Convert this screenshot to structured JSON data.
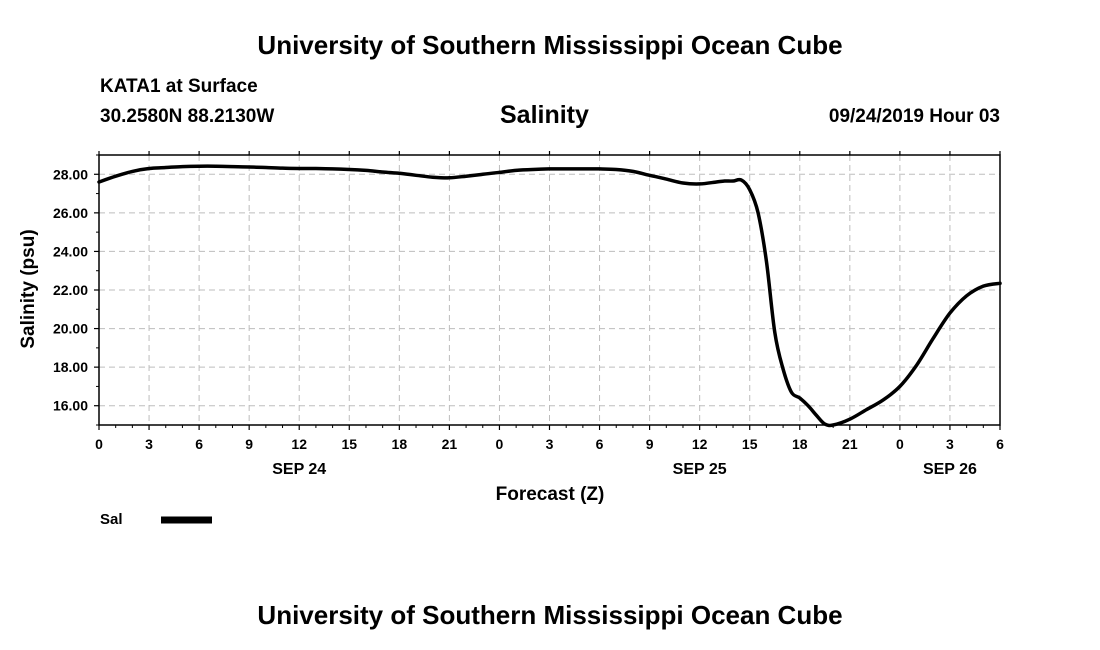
{
  "header": {
    "title": "University of Southern Mississippi Ocean Cube",
    "station": "KATA1 at Surface",
    "coords": "30.2580N 88.2130W",
    "chart_title": "Salinity",
    "timestamp": "09/24/2019 Hour 03"
  },
  "footer": {
    "title": "University of Southern Mississippi Ocean Cube"
  },
  "chart_data": {
    "type": "line",
    "title": "Salinity",
    "xlabel": "Forecast (Z)",
    "ylabel": "Salinity (psu)",
    "x_unit": "hours from 2019-09-24 00Z",
    "xlim": [
      0,
      54
    ],
    "ylim": [
      15,
      29
    ],
    "grid": true,
    "x_tick_values": [
      0,
      3,
      6,
      9,
      12,
      15,
      18,
      21,
      24,
      27,
      30,
      33,
      36,
      39,
      42,
      45,
      48,
      51,
      54
    ],
    "x_tick_labels": [
      "0",
      "3",
      "6",
      "9",
      "12",
      "15",
      "18",
      "21",
      "0",
      "3",
      "6",
      "9",
      "12",
      "15",
      "18",
      "21",
      "0",
      "3",
      "6"
    ],
    "date_labels": [
      {
        "x": 12,
        "label": "SEP 24"
      },
      {
        "x": 36,
        "label": "SEP 25"
      },
      {
        "x": 51,
        "label": "SEP 26"
      }
    ],
    "y_ticks": [
      16,
      18,
      20,
      22,
      24,
      26,
      28
    ],
    "y_tick_labels": [
      "16.00",
      "18.00",
      "20.00",
      "22.00",
      "24.00",
      "26.00",
      "28.00"
    ],
    "legend": {
      "position": "bottom-left",
      "entries": [
        "Sal"
      ]
    },
    "series": [
      {
        "name": "Sal",
        "color": "#000000",
        "x": [
          0,
          1,
          2,
          3,
          4,
          5,
          6,
          7,
          8,
          9,
          10,
          11,
          12,
          13,
          14,
          15,
          16,
          17,
          18,
          19,
          20,
          21,
          22,
          23,
          24,
          25,
          26,
          27,
          28,
          29,
          30,
          31,
          32,
          33,
          34,
          35,
          36,
          37,
          37.5,
          38,
          38.5,
          39,
          39.5,
          40,
          40.5,
          41,
          41.5,
          42,
          42.5,
          43,
          43.5,
          44,
          45,
          46,
          47,
          48,
          49,
          50,
          51,
          52,
          53,
          54
        ],
        "y": [
          27.6,
          27.9,
          28.15,
          28.3,
          28.35,
          28.4,
          28.42,
          28.42,
          28.4,
          28.38,
          28.35,
          28.32,
          28.3,
          28.3,
          28.28,
          28.25,
          28.2,
          28.12,
          28.05,
          27.95,
          27.85,
          27.82,
          27.9,
          28.0,
          28.1,
          28.2,
          28.25,
          28.28,
          28.28,
          28.28,
          28.28,
          28.25,
          28.15,
          27.95,
          27.75,
          27.55,
          27.5,
          27.6,
          27.65,
          27.65,
          27.7,
          27.2,
          26.0,
          23.5,
          19.8,
          17.9,
          16.7,
          16.4,
          16.0,
          15.5,
          15.05,
          15.0,
          15.3,
          15.8,
          16.3,
          17.0,
          18.1,
          19.5,
          20.8,
          21.7,
          22.2,
          22.35
        ]
      }
    ]
  }
}
